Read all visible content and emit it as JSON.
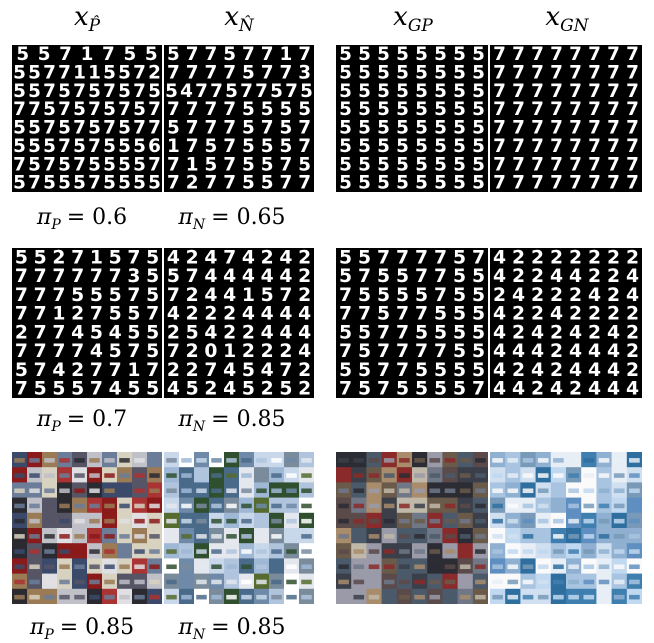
{
  "headers": [
    {
      "base": "x",
      "sub": "P̂"
    },
    {
      "base": "x",
      "sub": "N̂"
    },
    {
      "base": "x",
      "sub": "GP"
    },
    {
      "base": "x",
      "sub": "GN"
    }
  ],
  "rows": [
    {
      "kind": "mnist",
      "captions": [
        {
          "sym": "π",
          "sub": "P",
          "value": "= 0.6"
        },
        {
          "sym": "π",
          "sub": "N",
          "value": "= 0.65"
        }
      ],
      "grids": [
        {
          "name": "x-p-hat-samples",
          "digits": [
            "5571755",
            "5577115572",
            "5575757575",
            "7757575757",
            "5575757577",
            "5557575556",
            "7575755557",
            "5755575555"
          ]
        },
        {
          "name": "x-n-hat-samples",
          "digits": [
            "57757717",
            "77775773",
            "5477577575",
            "77775555",
            "57775757",
            "17575557",
            "71575575",
            "72775577"
          ]
        },
        {
          "name": "x-gp-samples",
          "digits": [
            "55555555",
            "55555555",
            "55555555",
            "55555555",
            "55555555",
            "55555555",
            "55555555",
            "55555555"
          ]
        },
        {
          "name": "x-gn-samples",
          "digits": [
            "77777777",
            "77777777",
            "77777777",
            "77777777",
            "77777777",
            "77777777",
            "77777777",
            "77777777"
          ]
        }
      ]
    },
    {
      "kind": "mnist",
      "captions": [
        {
          "sym": "π",
          "sub": "P",
          "value": "= 0.7"
        },
        {
          "sym": "π",
          "sub": "N",
          "value": "= 0.85"
        }
      ],
      "grids": [
        {
          "name": "x-p-hat-samples",
          "digits": [
            "55271575",
            "77777735",
            "77755575",
            "77127557",
            "27745455",
            "77774575",
            "57427717",
            "75557455"
          ]
        },
        {
          "name": "x-n-hat-samples",
          "digits": [
            "42474242",
            "57444442",
            "72441572",
            "42224444",
            "25422444",
            "72012224",
            "22745472",
            "45245252"
          ]
        },
        {
          "name": "x-gp-samples",
          "digits": [
            "55777757",
            "57557755",
            "75555755",
            "77577555",
            "55775555",
            "75777755",
            "55775555",
            "75755557"
          ]
        },
        {
          "name": "x-gn-samples",
          "digits": [
            "42222222",
            "42244224",
            "24222424",
            "42242222",
            "42424242",
            "44424442",
            "42424442",
            "44242444"
          ]
        }
      ]
    },
    {
      "kind": "photo",
      "captions": [
        {
          "sym": "π",
          "sub": "P",
          "value": "= 0.85"
        },
        {
          "sym": "π",
          "sub": "N",
          "value": "= 0.85"
        }
      ],
      "grids": [
        {
          "name": "x-p-hat-car-images"
        },
        {
          "name": "x-n-hat-airplane-images"
        },
        {
          "name": "x-gp-car-images"
        },
        {
          "name": "x-gn-airplane-images"
        }
      ]
    }
  ]
}
